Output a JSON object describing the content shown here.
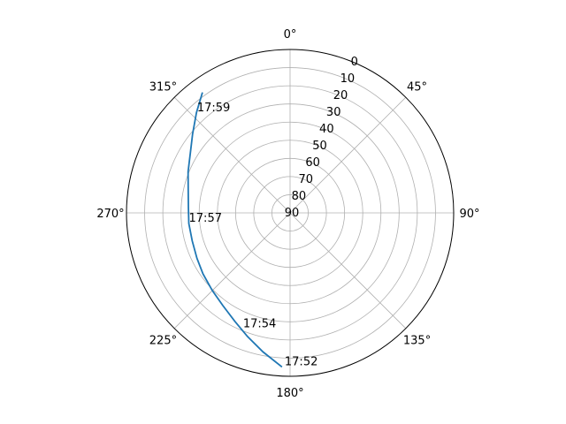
{
  "chart_data": {
    "type": "line",
    "projection": "polar",
    "theta_zero_location": "top",
    "theta_direction": "clockwise",
    "r_axis": {
      "range": [
        90,
        0
      ],
      "ticks": [
        "0",
        "10",
        "20",
        "30",
        "40",
        "50",
        "60",
        "70",
        "80",
        "90"
      ]
    },
    "theta_ticks": [
      "0°",
      "45°",
      "90°",
      "135°",
      "180°",
      "225°",
      "270°",
      "315°"
    ],
    "grid": true,
    "series": [
      {
        "color": "#1f77b4",
        "points": [
          {
            "theta_deg": 183.0,
            "r": 5.0
          },
          {
            "theta_deg": 191.0,
            "r": 12.0
          },
          {
            "theta_deg": 199.0,
            "r": 18.0
          },
          {
            "theta_deg": 207.0,
            "r": 23.0
          },
          {
            "theta_deg": 216.0,
            "r": 27.0
          },
          {
            "theta_deg": 225.0,
            "r": 29.5
          },
          {
            "theta_deg": 235.0,
            "r": 31.5
          },
          {
            "theta_deg": 244.0,
            "r": 33.0
          },
          {
            "theta_deg": 254.0,
            "r": 34.0
          },
          {
            "theta_deg": 264.0,
            "r": 34.0
          },
          {
            "theta_deg": 273.0,
            "r": 34.0
          },
          {
            "theta_deg": 283.0,
            "r": 32.5
          },
          {
            "theta_deg": 292.0,
            "r": 29.5
          },
          {
            "theta_deg": 301.0,
            "r": 26.0
          },
          {
            "theta_deg": 309.0,
            "r": 21.0
          },
          {
            "theta_deg": 317.0,
            "r": 14.5
          },
          {
            "theta_deg": 324.0,
            "r": 8.0
          }
        ]
      }
    ],
    "annotations": [
      {
        "text": "17:52",
        "theta_deg": 182.0,
        "r": 5.0
      },
      {
        "text": "17:54",
        "theta_deg": 202.0,
        "r": 21.0
      },
      {
        "text": "17:57",
        "theta_deg": 264.0,
        "r": 34.0
      },
      {
        "text": "17:59",
        "theta_deg": 317.0,
        "r": 15.0
      }
    ]
  }
}
